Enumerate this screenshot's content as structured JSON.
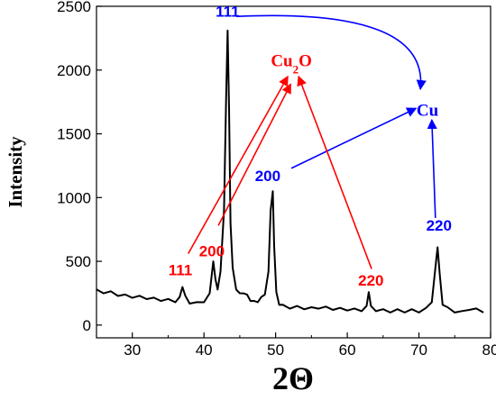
{
  "chart_data": {
    "type": "line",
    "title": "",
    "xlabel": "2Θ",
    "ylabel": "Intensity",
    "xlim": [
      25,
      80
    ],
    "ylim": [
      -100,
      2500
    ],
    "xticks": [
      30,
      40,
      50,
      60,
      70,
      80
    ],
    "yticks": [
      0,
      500,
      1000,
      1500,
      2000,
      2500
    ],
    "grid": false,
    "series": [
      {
        "color": "#000000",
        "x": [
          25,
          26,
          27,
          28,
          29,
          30,
          31,
          32,
          33,
          34,
          35,
          36,
          36.6,
          37,
          37.4,
          38,
          39,
          40,
          40.8,
          41.3,
          41.6,
          41.9,
          42.3,
          42.8,
          43.1,
          43.3,
          43.5,
          43.7,
          44,
          44.5,
          45,
          45.5,
          46,
          46.5,
          47,
          47.5,
          48,
          48.5,
          49,
          49.3,
          49.6,
          49.8,
          50.1,
          50.5,
          51,
          52,
          53,
          54,
          55,
          56,
          57,
          58,
          59,
          60,
          61,
          62,
          62.7,
          63,
          63.3,
          64,
          65,
          66,
          67,
          68,
          69,
          70,
          71,
          71.8,
          72.3,
          72.6,
          72.9,
          73.3,
          74,
          75,
          76,
          77,
          78,
          79
        ],
        "values": [
          280,
          270,
          265,
          250,
          240,
          235,
          230,
          225,
          215,
          210,
          205,
          200,
          220,
          320,
          230,
          190,
          180,
          200,
          250,
          500,
          360,
          300,
          420,
          900,
          1800,
          2310,
          1700,
          800,
          450,
          300,
          250,
          270,
          240,
          210,
          190,
          200,
          220,
          260,
          420,
          900,
          1050,
          620,
          260,
          180,
          160,
          150,
          150,
          145,
          140,
          150,
          145,
          140,
          135,
          135,
          130,
          130,
          150,
          280,
          150,
          130,
          125,
          120,
          125,
          120,
          125,
          120,
          135,
          200,
          450,
          610,
          400,
          180,
          140,
          120,
          110,
          140,
          130,
          120
        ]
      }
    ],
    "annotations": [
      {
        "text": "111",
        "color": "#0000ff",
        "x": 43.3,
        "y": 2420
      },
      {
        "text": "200",
        "color": "#0000ff",
        "x": 48.9,
        "y": 1130
      },
      {
        "text": "220",
        "color": "#0000ff",
        "x": 72.8,
        "y": 740
      },
      {
        "text": "111",
        "color": "#ff0000",
        "x": 36.7,
        "y": 390
      },
      {
        "text": "200",
        "color": "#ff0000",
        "x": 41.1,
        "y": 540
      },
      {
        "text": "220",
        "color": "#ff0000",
        "x": 63.3,
        "y": 310
      }
    ],
    "phase_labels": [
      {
        "name": "Cu",
        "subscript": "2",
        "suffix": "O",
        "color": "#ff0000",
        "x": 52.2,
        "y": 2030
      },
      {
        "name": "Cu",
        "subscript": "",
        "suffix": "",
        "color": "#0000ff",
        "x": 71.2,
        "y": 1640
      }
    ],
    "arrows": [
      {
        "color": "#0000ff",
        "from": [
          44.5,
          2420
        ],
        "to": [
          70.2,
          1850
        ],
        "curved": true
      },
      {
        "color": "#0000ff",
        "from": [
          52.2,
          1230
        ],
        "to": [
          69.6,
          1700
        ],
        "curved": false
      },
      {
        "color": "#0000ff",
        "from": [
          72.3,
          840
        ],
        "to": [
          71.8,
          1610
        ],
        "curved": false
      },
      {
        "color": "#ff0000",
        "from": [
          37.8,
          560
        ],
        "to": [
          51.7,
          1950
        ],
        "curved": false
      },
      {
        "color": "#ff0000",
        "from": [
          42.0,
          780
        ],
        "to": [
          52.1,
          1890
        ],
        "curved": false
      },
      {
        "color": "#ff0000",
        "from": [
          63.4,
          440
        ],
        "to": [
          53.2,
          1950
        ],
        "curved": false
      }
    ]
  }
}
